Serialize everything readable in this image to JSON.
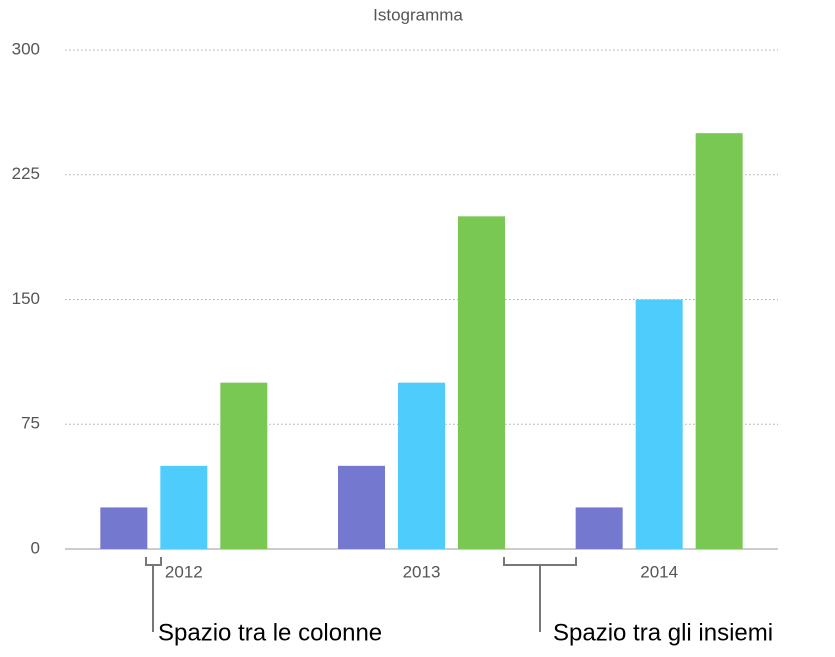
{
  "chart_data": {
    "type": "bar",
    "title": "Istogramma",
    "categories": [
      "2012",
      "2013",
      "2014"
    ],
    "series": [
      {
        "color": "#7479cf",
        "values": [
          25,
          50,
          25
        ]
      },
      {
        "color": "#4ecdfc",
        "values": [
          50,
          100,
          150
        ]
      },
      {
        "color": "#78c853",
        "values": [
          100,
          200,
          250
        ]
      }
    ],
    "ylim": [
      0,
      300
    ],
    "yticks": [
      0,
      75,
      150,
      225,
      300
    ],
    "grid": true,
    "annotations": [
      "Spazio tra le colonne",
      "Spazio tra gli insiemi"
    ]
  }
}
